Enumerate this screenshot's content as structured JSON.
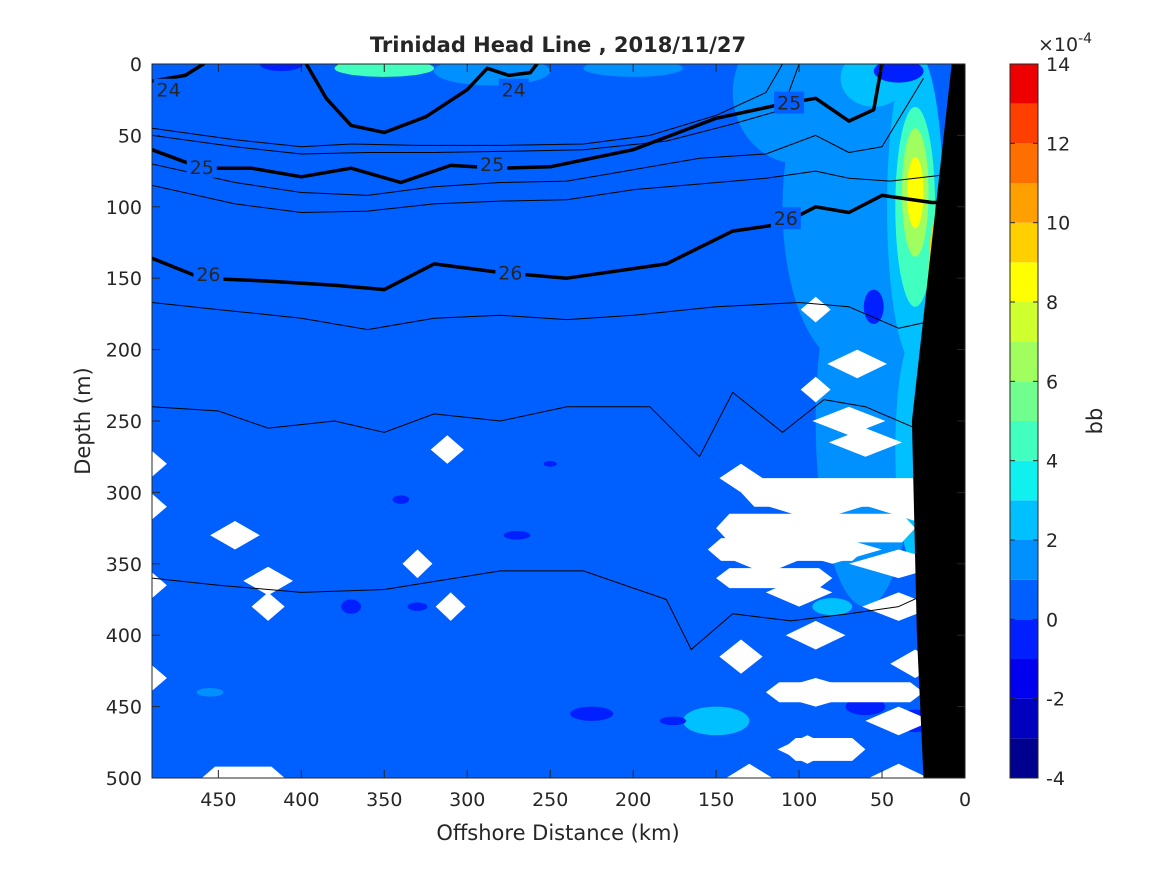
{
  "chart_data": {
    "type": "heatmap",
    "title": "Trinidad Head Line , 2018/11/27",
    "xlabel": "Offshore Distance (km)",
    "ylabel": "Depth (m)",
    "xlim": [
      490,
      0
    ],
    "ylim": [
      0,
      500
    ],
    "x_ticks": [
      "450",
      "400",
      "350",
      "300",
      "250",
      "200",
      "150",
      "100",
      "50",
      "0"
    ],
    "x_tick_values": [
      450,
      400,
      350,
      300,
      250,
      200,
      150,
      100,
      50,
      0
    ],
    "y_ticks": [
      "0",
      "50",
      "100",
      "150",
      "200",
      "250",
      "300",
      "350",
      "400",
      "450",
      "500"
    ],
    "y_tick_values": [
      0,
      50,
      100,
      150,
      200,
      250,
      300,
      350,
      400,
      450,
      500
    ],
    "colorbar": {
      "label": "bb",
      "exponent_label": "×10",
      "exponent_power": "-4",
      "range": [
        -4,
        14
      ],
      "tick_labels": [
        "14",
        "12",
        "10",
        "8",
        "6",
        "4",
        "2",
        "0",
        "-2",
        "-4"
      ],
      "tick_values": [
        14,
        12,
        10,
        8,
        6,
        4,
        2,
        0,
        -2,
        -4
      ],
      "levels": [
        {
          "min": -4,
          "max": -3,
          "color": "#00008f"
        },
        {
          "min": -3,
          "max": -2,
          "color": "#0000bf"
        },
        {
          "min": -2,
          "max": -1,
          "color": "#0000ef"
        },
        {
          "min": -1,
          "max": 0,
          "color": "#0020ff"
        },
        {
          "min": 0,
          "max": 1,
          "color": "#0060ff"
        },
        {
          "min": 1,
          "max": 2,
          "color": "#0090ff"
        },
        {
          "min": 2,
          "max": 3,
          "color": "#00c0ff"
        },
        {
          "min": 3,
          "max": 4,
          "color": "#10f0ef"
        },
        {
          "min": 4,
          "max": 5,
          "color": "#40ffbf"
        },
        {
          "min": 5,
          "max": 6,
          "color": "#70ff8f"
        },
        {
          "min": 6,
          "max": 7,
          "color": "#a0ff5f"
        },
        {
          "min": 7,
          "max": 8,
          "color": "#d0ff2f"
        },
        {
          "min": 8,
          "max": 9,
          "color": "#ffff00"
        },
        {
          "min": 9,
          "max": 10,
          "color": "#ffcf00"
        },
        {
          "min": 10,
          "max": 11,
          "color": "#ff9f00"
        },
        {
          "min": 11,
          "max": 12,
          "color": "#ff6f00"
        },
        {
          "min": 12,
          "max": 13,
          "color": "#ff3f00"
        },
        {
          "min": 13,
          "max": 14,
          "color": "#ef0000"
        },
        {
          "min": 14,
          "max": 15,
          "color": "#af0000"
        }
      ]
    },
    "background_level_color": "#0060ff",
    "contours": [
      {
        "level": "24",
        "labels": [
          {
            "x": 480,
            "y": 18
          },
          {
            "x": 272,
            "y": 18
          }
        ],
        "segments": [
          [
            [
              490,
              12
            ],
            [
              470,
              8
            ],
            [
              459,
              0
            ]
          ],
          [
            [
              397,
              0
            ],
            [
              385,
              24
            ],
            [
              370,
              43
            ],
            [
              350,
              48
            ],
            [
              325,
              37
            ],
            [
              300,
              18
            ],
            [
              288,
              3
            ],
            [
              275,
              8
            ],
            [
              262,
              6
            ],
            [
              258,
              0
            ]
          ]
        ]
      },
      {
        "level": "25",
        "labels": [
          {
            "x": 460,
            "y": 72
          },
          {
            "x": 285,
            "y": 70
          },
          {
            "x": 106,
            "y": 27
          }
        ],
        "segments": [
          [
            [
              490,
              60
            ],
            [
              460,
              73
            ],
            [
              430,
              73
            ],
            [
              400,
              79
            ],
            [
              370,
              73
            ],
            [
              340,
              83
            ],
            [
              310,
              71
            ],
            [
              280,
              73
            ],
            [
              250,
              72
            ],
            [
              200,
              60
            ],
            [
              150,
              38
            ],
            [
              110,
              28
            ],
            [
              90,
              24
            ],
            [
              70,
              40
            ],
            [
              55,
              32
            ],
            [
              50,
              0
            ]
          ]
        ]
      },
      {
        "level": "26",
        "labels": [
          {
            "x": 456,
            "y": 147
          },
          {
            "x": 274,
            "y": 146
          },
          {
            "x": 108,
            "y": 108
          }
        ],
        "segments": [
          [
            [
              490,
              136
            ],
            [
              460,
              150
            ],
            [
              420,
              152
            ],
            [
              380,
              155
            ],
            [
              350,
              158
            ],
            [
              320,
              140
            ],
            [
              280,
              146
            ],
            [
              240,
              150
            ],
            [
              180,
              140
            ],
            [
              140,
              117
            ],
            [
              110,
              112
            ],
            [
              90,
              100
            ],
            [
              70,
              104
            ],
            [
              50,
              92
            ],
            [
              20,
              97
            ],
            [
              10,
              97
            ]
          ]
        ]
      }
    ],
    "thin_contours": [
      [
        [
          490,
          45
        ],
        [
          440,
          53
        ],
        [
          400,
          58
        ],
        [
          370,
          56
        ],
        [
          330,
          57
        ],
        [
          280,
          57
        ],
        [
          230,
          56
        ],
        [
          190,
          50
        ],
        [
          150,
          36
        ],
        [
          120,
          20
        ],
        [
          110,
          0
        ]
      ],
      [
        [
          490,
          50
        ],
        [
          440,
          58
        ],
        [
          400,
          63
        ],
        [
          360,
          62
        ],
        [
          320,
          62
        ],
        [
          270,
          61
        ],
        [
          230,
          60
        ],
        [
          180,
          54
        ],
        [
          140,
          42
        ],
        [
          110,
          32
        ],
        [
          100,
          0
        ]
      ],
      [
        [
          490,
          70
        ],
        [
          440,
          83
        ],
        [
          400,
          90
        ],
        [
          360,
          92
        ],
        [
          320,
          86
        ],
        [
          280,
          83
        ],
        [
          240,
          82
        ],
        [
          200,
          74
        ],
        [
          160,
          66
        ],
        [
          120,
          63
        ],
        [
          90,
          50
        ],
        [
          70,
          62
        ],
        [
          50,
          58
        ],
        [
          25,
          10
        ]
      ],
      [
        [
          490,
          85
        ],
        [
          440,
          98
        ],
        [
          400,
          104
        ],
        [
          360,
          103
        ],
        [
          320,
          98
        ],
        [
          280,
          96
        ],
        [
          240,
          95
        ],
        [
          200,
          88
        ],
        [
          160,
          84
        ],
        [
          120,
          80
        ],
        [
          90,
          75
        ],
        [
          70,
          80
        ],
        [
          45,
          82
        ],
        [
          15,
          78
        ]
      ],
      [
        [
          490,
          167
        ],
        [
          450,
          172
        ],
        [
          400,
          178
        ],
        [
          360,
          186
        ],
        [
          320,
          178
        ],
        [
          280,
          176
        ],
        [
          240,
          179
        ],
        [
          200,
          176
        ],
        [
          150,
          170
        ],
        [
          100,
          167
        ],
        [
          70,
          170
        ],
        [
          40,
          185
        ],
        [
          20,
          180
        ]
      ],
      [
        [
          490,
          240
        ],
        [
          450,
          243
        ],
        [
          420,
          255
        ],
        [
          380,
          250
        ],
        [
          350,
          258
        ],
        [
          320,
          245
        ],
        [
          280,
          250
        ],
        [
          240,
          240
        ],
        [
          190,
          240
        ],
        [
          160,
          275
        ],
        [
          140,
          230
        ],
        [
          110,
          258
        ],
        [
          85,
          235
        ],
        [
          60,
          240
        ],
        [
          30,
          255
        ]
      ],
      [
        [
          490,
          360
        ],
        [
          450,
          365
        ],
        [
          400,
          370
        ],
        [
          350,
          368
        ],
        [
          280,
          355
        ],
        [
          230,
          355
        ],
        [
          180,
          375
        ],
        [
          165,
          410
        ],
        [
          140,
          385
        ],
        [
          105,
          390
        ],
        [
          70,
          385
        ],
        [
          40,
          380
        ],
        [
          25,
          372
        ]
      ]
    ],
    "blobs": [
      {
        "x": 412,
        "y": 0,
        "rx": 13,
        "ry": 5,
        "color": "#0020ff"
      },
      {
        "x": 370,
        "y": 0,
        "rx": 8,
        "ry": 4,
        "color": "#ffff00"
      },
      {
        "x": 350,
        "y": 3,
        "rx": 30,
        "ry": 6,
        "color": "#40ffbf"
      },
      {
        "x": 285,
        "y": 5,
        "rx": 35,
        "ry": 10,
        "color": "#0090ff"
      },
      {
        "x": 200,
        "y": 3,
        "rx": 30,
        "ry": 6,
        "color": "#0090ff"
      },
      {
        "x": 100,
        "y": 20,
        "rx": 40,
        "ry": 50,
        "color": "#0090ff"
      },
      {
        "x": 70,
        "y": 100,
        "rx": 40,
        "ry": 110,
        "color": "#0090ff"
      },
      {
        "x": 60,
        "y": 250,
        "rx": 30,
        "ry": 130,
        "color": "#0090ff"
      },
      {
        "x": 55,
        "y": 10,
        "rx": 20,
        "ry": 20,
        "color": "#00c0ff"
      },
      {
        "x": 30,
        "y": 100,
        "rx": 17,
        "ry": 110,
        "color": "#00c0ff"
      },
      {
        "x": 30,
        "y": 270,
        "rx": 12,
        "ry": 80,
        "color": "#00c0ff"
      },
      {
        "x": 30,
        "y": 100,
        "rx": 12,
        "ry": 70,
        "color": "#40ffbf"
      },
      {
        "x": 30,
        "y": 90,
        "rx": 8,
        "ry": 45,
        "color": "#a0ff5f"
      },
      {
        "x": 30,
        "y": 90,
        "rx": 5,
        "ry": 25,
        "color": "#ffff00"
      },
      {
        "x": 18,
        "y": 150,
        "rx": 4,
        "ry": 40,
        "color": "#ffcf00"
      },
      {
        "x": 20,
        "y": 250,
        "rx": 6,
        "ry": 30,
        "color": "#40ffbf"
      },
      {
        "x": 40,
        "y": 5,
        "rx": 15,
        "ry": 8,
        "color": "#0020ff"
      },
      {
        "x": 55,
        "y": 170,
        "rx": 6,
        "ry": 12,
        "color": "#0020ff"
      },
      {
        "x": 80,
        "y": 380,
        "rx": 12,
        "ry": 6,
        "color": "#00c0ff"
      },
      {
        "x": 150,
        "y": 460,
        "rx": 20,
        "ry": 10,
        "color": "#00c0ff"
      },
      {
        "x": 60,
        "y": 450,
        "rx": 12,
        "ry": 6,
        "color": "#0020ff"
      },
      {
        "x": 30,
        "y": 460,
        "rx": 10,
        "ry": 8,
        "color": "#0020ff"
      },
      {
        "x": 370,
        "y": 380,
        "rx": 6,
        "ry": 5,
        "color": "#0020ff"
      },
      {
        "x": 330,
        "y": 380,
        "rx": 6,
        "ry": 3,
        "color": "#0020ff"
      },
      {
        "x": 340,
        "y": 305,
        "rx": 5,
        "ry": 3,
        "color": "#0020ff"
      },
      {
        "x": 270,
        "y": 330,
        "rx": 8,
        "ry": 3,
        "color": "#0020ff"
      },
      {
        "x": 225,
        "y": 455,
        "rx": 13,
        "ry": 5,
        "color": "#0020ff"
      },
      {
        "x": 176,
        "y": 460,
        "rx": 8,
        "ry": 3,
        "color": "#0020ff"
      },
      {
        "x": 250,
        "y": 280,
        "rx": 4,
        "ry": 2,
        "color": "#0020ff"
      },
      {
        "x": 455,
        "y": 440,
        "rx": 8,
        "ry": 3,
        "color": "#0090ff"
      }
    ],
    "nan_patches": [
      {
        "x": 312,
        "y": 270,
        "dx": 10,
        "dy": 10
      },
      {
        "x": 440,
        "y": 330,
        "dx": 15,
        "dy": 10
      },
      {
        "x": 420,
        "y": 362,
        "dx": 15,
        "dy": 10
      },
      {
        "x": 330,
        "y": 350,
        "dx": 9,
        "dy": 10
      },
      {
        "x": 310,
        "y": 380,
        "dx": 9,
        "dy": 10
      },
      {
        "x": 490,
        "y": 280,
        "dx": 9,
        "dy": 9
      },
      {
        "x": 490,
        "y": 310,
        "dx": 9,
        "dy": 9
      },
      {
        "x": 490,
        "y": 365,
        "dx": 9,
        "dy": 9
      },
      {
        "x": 490,
        "y": 430,
        "dx": 9,
        "dy": 9
      },
      {
        "x": 90,
        "y": 172,
        "dx": 9,
        "dy": 9
      },
      {
        "x": 65,
        "y": 210,
        "dx": 18,
        "dy": 10
      },
      {
        "x": 90,
        "y": 228,
        "dx": 9,
        "dy": 9
      },
      {
        "x": 70,
        "y": 250,
        "dx": 22,
        "dy": 10
      },
      {
        "x": 60,
        "y": 265,
        "dx": 22,
        "dy": 10
      },
      {
        "x": 135,
        "y": 290,
        "dx": 13,
        "dy": 10
      },
      {
        "x": 30,
        "y": 310,
        "dx": 28,
        "dy": 10
      },
      {
        "x": 90,
        "y": 310,
        "dx": 28,
        "dy": 10
      },
      {
        "x": 80,
        "y": 340,
        "dx": 30,
        "dy": 10
      },
      {
        "x": 40,
        "y": 350,
        "dx": 30,
        "dy": 10
      },
      {
        "x": 120,
        "y": 345,
        "dx": 25,
        "dy": 12
      },
      {
        "x": 100,
        "y": 370,
        "dx": 20,
        "dy": 10
      },
      {
        "x": 40,
        "y": 380,
        "dx": 22,
        "dy": 10
      },
      {
        "x": 90,
        "y": 400,
        "dx": 18,
        "dy": 10
      },
      {
        "x": 30,
        "y": 420,
        "dx": 15,
        "dy": 10
      },
      {
        "x": 135,
        "y": 415,
        "dx": 13,
        "dy": 12
      },
      {
        "x": 90,
        "y": 440,
        "dx": 30,
        "dy": 10
      },
      {
        "x": 40,
        "y": 460,
        "dx": 20,
        "dy": 10
      },
      {
        "x": 95,
        "y": 480,
        "dx": 18,
        "dy": 10
      },
      {
        "x": 40,
        "y": 500,
        "dx": 18,
        "dy": 10
      },
      {
        "x": 130,
        "y": 500,
        "dx": 14,
        "dy": 10
      },
      {
        "x": 420,
        "y": 380,
        "dx": 10,
        "dy": 10
      }
    ],
    "nan_bars": [
      {
        "x0": 135,
        "x1": 15,
        "y": 300,
        "dy": 10
      },
      {
        "x0": 150,
        "x1": 30,
        "y": 325,
        "dy": 10
      },
      {
        "x0": 155,
        "x1": 60,
        "y": 340,
        "dy": 8
      },
      {
        "x0": 150,
        "x1": 80,
        "y": 360,
        "dy": 7
      },
      {
        "x0": 120,
        "x1": 25,
        "y": 440,
        "dy": 7
      },
      {
        "x0": 110,
        "x1": 60,
        "y": 480,
        "dy": 8
      },
      {
        "x0": 460,
        "x1": 410,
        "y": 500,
        "dy": 8
      }
    ],
    "bathymetry": [
      [
        0,
        0
      ],
      [
        0,
        500
      ],
      [
        25,
        500
      ],
      [
        29,
        400
      ],
      [
        31,
        300
      ],
      [
        32,
        250
      ],
      [
        8,
        0
      ]
    ]
  }
}
